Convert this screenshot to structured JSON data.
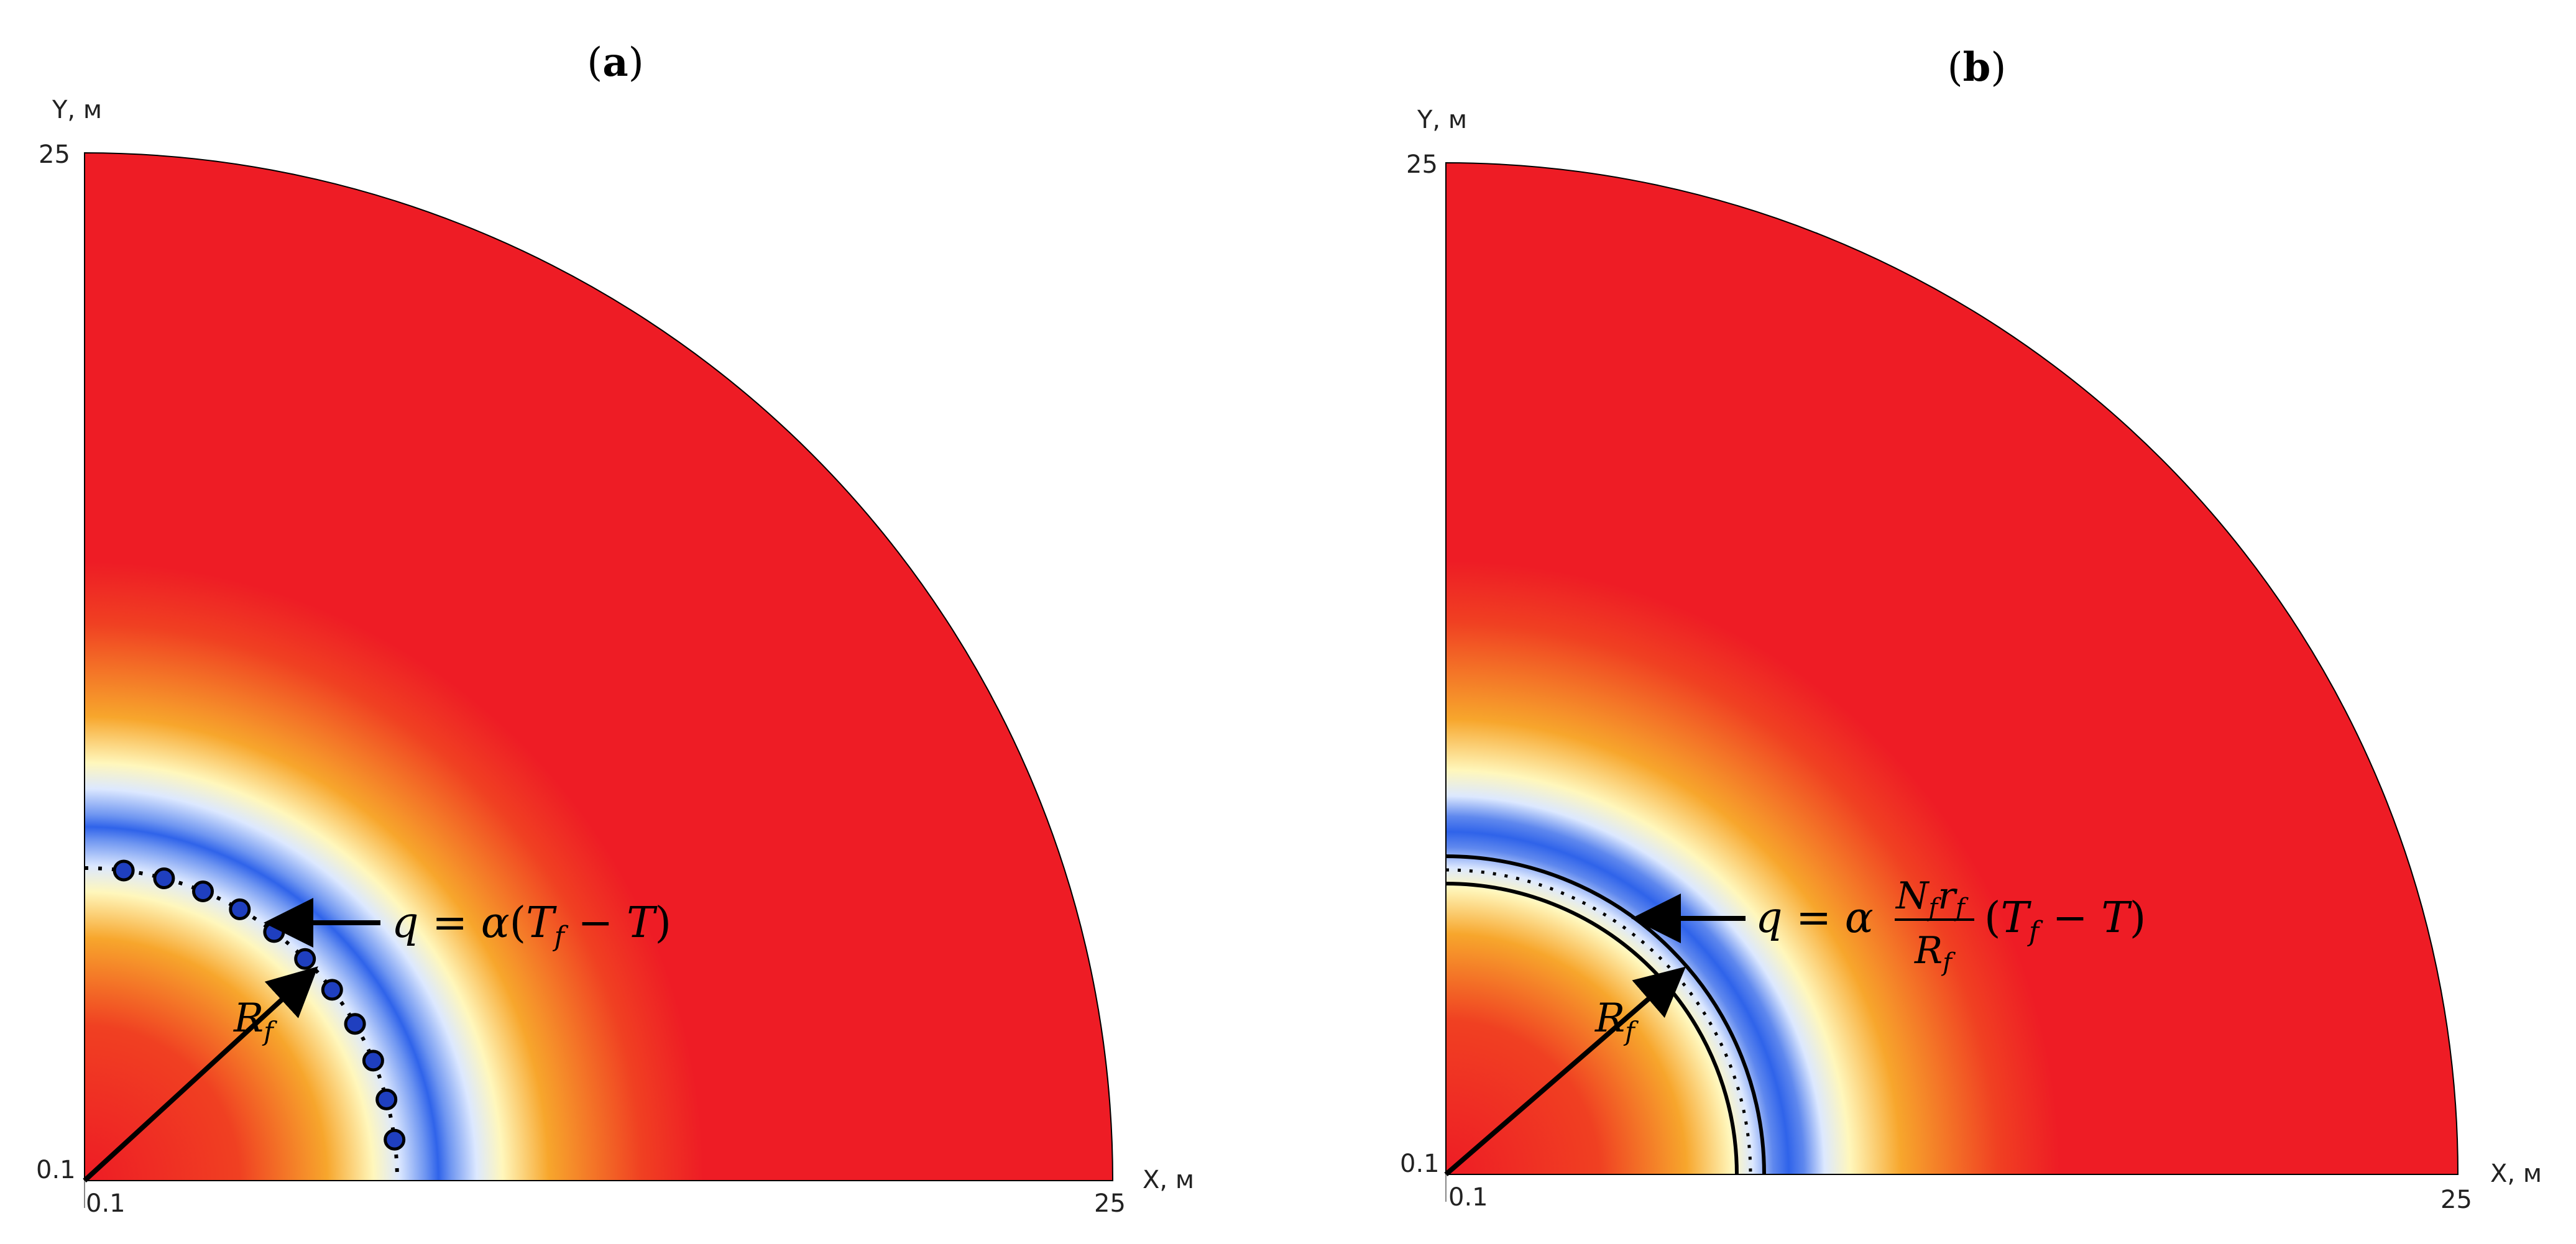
{
  "panels": [
    {
      "id": "a",
      "label_open": "(",
      "label_letter": "a",
      "label_close": ")",
      "y_axis_label": "Y, м",
      "x_axis_label": "X, м",
      "y_max_tick": "25",
      "y_min_tick": "0.1",
      "x_min_tick": "0.1",
      "x_max_tick": "25",
      "formula": {
        "q": "q",
        "eq": " = ",
        "alpha": "α",
        "open": "(",
        "T_f": "T",
        "f_sub": "f",
        "minus": " − ",
        "T": "T",
        "close": ")"
      },
      "radius_label": "R",
      "radius_sub": "f",
      "well_count": 11,
      "well_colour": "#1f3fbf"
    },
    {
      "id": "b",
      "label_open": "(",
      "label_letter": "b",
      "label_close": ")",
      "y_axis_label": "Y, м",
      "x_axis_label": "X, м",
      "y_max_tick": "25",
      "y_min_tick": "0.1",
      "x_min_tick": "0.1",
      "x_max_tick": "25",
      "formula": {
        "q": "q",
        "eq": " = ",
        "alpha": "α",
        "num_N": "N",
        "num_N_sub": "f",
        "num_r": "r",
        "num_r_sub": "f",
        "den_R": "R",
        "den_R_sub": "f",
        "open": "(",
        "T_f": "T",
        "f_sub": "f",
        "minus": " − ",
        "T": "T",
        "close": ")"
      },
      "radius_label": "R",
      "radius_sub": "f"
    }
  ],
  "colors": {
    "background_field": "#ee1c25",
    "cold_band": "#2f63ea",
    "warm_band": "#fffcc8",
    "outline": "#000000"
  }
}
